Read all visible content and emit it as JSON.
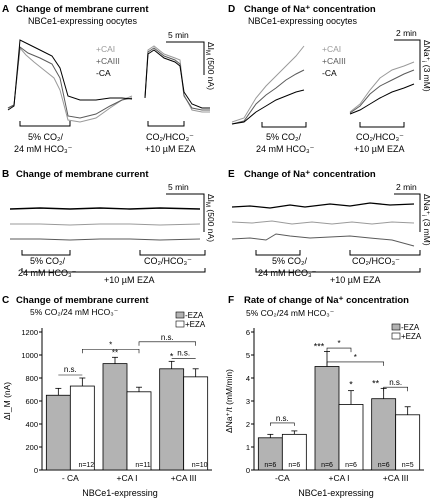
{
  "panels": {
    "A": {
      "letter": "A",
      "title": "Change of membrane current",
      "subtitle": "NBCe1-expressing oocytes",
      "legend": [
        "+CAI",
        "+CAIII",
        "-CA"
      ],
      "legend_colors": [
        "#9a9a9a",
        "#5a5a5a",
        "#000000"
      ],
      "time_scale": "5 min",
      "y_scale": "ΔI",
      "y_scale_sub": "M",
      "y_scale_value": "(500 nA)",
      "label_left": [
        "5% CO₂/",
        "24 mM HCO₃⁻"
      ],
      "label_right": [
        "CO₂/HCO₃⁻",
        "+10 µM EZA"
      ]
    },
    "B": {
      "letter": "B",
      "title": "Change of membrane current",
      "time_scale": "5 min",
      "y_scale": "ΔI",
      "y_scale_sub": "M",
      "y_scale_value": "(500 nA)",
      "label_left": [
        "5% CO₂/",
        "24 mM HCO₃⁻"
      ],
      "label_right": [
        "CO₂/HCO₃⁻"
      ],
      "label_bottom": "+10 µM EZA"
    },
    "C": {
      "letter": "C",
      "title": "Change of membrane current",
      "subtitle": "5% CO₂/24 mM HCO₃⁻",
      "xlabel": "NBCe1-expressing"
    },
    "D": {
      "letter": "D",
      "title": "Change of Na⁺ concentration",
      "subtitle": "NBCe1-expressing oocytes",
      "legend": [
        "+CAI",
        "+CAIII",
        "-CA"
      ],
      "legend_colors": [
        "#9a9a9a",
        "#5a5a5a",
        "#000000"
      ],
      "time_scale": "2 min",
      "y_scale": "ΔNa⁺",
      "y_scale_sub": "i",
      "y_scale_value": "(3 mM)",
      "label_left": [
        "5% CO₂/",
        "24 mM HCO₃⁻"
      ],
      "label_right": [
        "CO₂/HCO₃⁻",
        "+10 µM EZA"
      ]
    },
    "E": {
      "letter": "E",
      "title": "Change of Na⁺ concentration",
      "time_scale": "2 min",
      "y_scale": "ΔNa⁺",
      "y_scale_sub": "i",
      "y_scale_value": "(3 mM)",
      "label_left": [
        "5% CO₂/",
        "24 mM HCO₃⁻"
      ],
      "label_right": [
        "CO₂/HCO₃⁻"
      ],
      "label_bottom": "+10 µM EZA"
    },
    "F": {
      "letter": "F",
      "title": "Rate of change of Na⁺ concentration",
      "subtitle": "5% CO₂/24 mM HCO₃⁻",
      "xlabel": "NBCe1-expressing"
    }
  },
  "chart_data": [
    {
      "id": "C",
      "type": "bar",
      "title": "Change of membrane current",
      "ylabel": "ΔI_M (nA)",
      "xlabel": "NBCe1-expressing",
      "ylim": [
        0,
        1200
      ],
      "yticks": [
        0,
        200,
        400,
        600,
        800,
        1000,
        1200
      ],
      "categories": [
        "- CA",
        "+CA I",
        "+CA III"
      ],
      "legend": [
        "-EZA",
        "+EZA"
      ],
      "series": [
        {
          "name": "-EZA",
          "color": "#b3b3b3",
          "values": [
            650,
            925,
            880
          ],
          "errors": [
            60,
            55,
            65
          ]
        },
        {
          "name": "+EZA",
          "color": "#ffffff",
          "values": [
            730,
            680,
            810
          ],
          "errors": [
            70,
            40,
            70
          ]
        }
      ],
      "n_labels": [
        "n=12",
        "n=11",
        "n=10"
      ],
      "within_sig": [
        "n.s.",
        "**",
        "n.s."
      ],
      "top_sig": [
        "",
        "",
        "*"
      ],
      "brackets": [
        {
          "from": [
            1,
            1
          ],
          "to": [
            0,
            1
          ],
          "label": "*",
          "y": 1050
        },
        {
          "from": [
            1,
            1
          ],
          "to": [
            2,
            1
          ],
          "label": "n.s.",
          "y": 1115
        }
      ]
    },
    {
      "id": "F",
      "type": "bar",
      "title": "Rate of change of Na⁺ concentration",
      "ylabel": "ΔNa⁺/t (mM/min)",
      "xlabel": "NBCe1-expressing",
      "ylim": [
        0,
        6
      ],
      "yticks": [
        0,
        1,
        2,
        3,
        4,
        5,
        6
      ],
      "categories": [
        "-CA",
        "+CA I",
        "+CA III"
      ],
      "legend": [
        "-EZA",
        "+EZA"
      ],
      "series": [
        {
          "name": "-EZA",
          "color": "#b3b3b3",
          "values": [
            1.4,
            4.5,
            3.1
          ],
          "errors": [
            0.15,
            0.65,
            0.45
          ]
        },
        {
          "name": "+EZA",
          "color": "#ffffff",
          "values": [
            1.55,
            2.85,
            2.4
          ],
          "errors": [
            0.15,
            0.6,
            0.35
          ]
        }
      ],
      "n_labels": [
        [
          "n=6",
          "n=6"
        ],
        [
          "n=6",
          "n=6"
        ],
        [
          "n=6",
          "n=5"
        ]
      ],
      "group_sig": [
        "n.s.",
        "***",
        "**"
      ],
      "plus_sig": [
        "",
        "*",
        ""
      ],
      "brackets": [
        {
          "from": [
            1,
            0
          ],
          "to": [
            1,
            1
          ],
          "label": "*",
          "y": 5.3
        },
        {
          "from": [
            1,
            0
          ],
          "to": [
            2,
            0
          ],
          "label": "*",
          "y": 4.7
        },
        {
          "from": [
            2,
            0
          ],
          "to": [
            2,
            1
          ],
          "label": "n.s.",
          "y": 3.6
        }
      ]
    }
  ]
}
